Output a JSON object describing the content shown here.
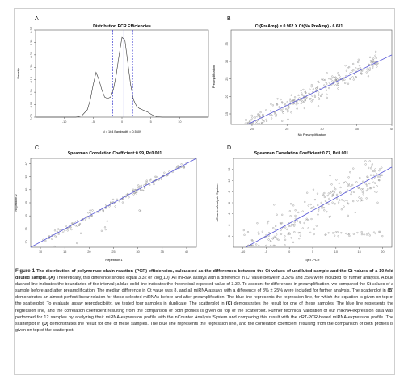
{
  "chart_data": [
    {
      "panel": "A",
      "type": "line",
      "title": "Distribution PCR Efficiencies",
      "xlabel": "N = 164   Bandwidth = 0.5609",
      "ylabel": "Density",
      "xlim": [
        -15,
        15
      ],
      "ylim": [
        0,
        0.35
      ],
      "x_ticks": [
        -10,
        -5,
        0,
        5,
        10
      ],
      "y_ticks": [
        0.0,
        0.05,
        0.1,
        0.15,
        0.2,
        0.25,
        0.3,
        0.35
      ],
      "x": [
        -15,
        -8,
        -7,
        -6,
        -5.5,
        -5,
        -4.5,
        -4,
        -3.5,
        -3,
        -2.5,
        -2,
        -1.5,
        -1,
        -0.5,
        0,
        0.5,
        1,
        1.5,
        2,
        2.5,
        3,
        3.5,
        4,
        4.5,
        5,
        5.5,
        6,
        7,
        8,
        15
      ],
      "y": [
        0,
        0,
        0.005,
        0.03,
        0.07,
        0.13,
        0.18,
        0.15,
        0.11,
        0.08,
        0.075,
        0.08,
        0.11,
        0.17,
        0.25,
        0.32,
        0.31,
        0.22,
        0.13,
        0.07,
        0.045,
        0.035,
        0.03,
        0.025,
        0.02,
        0.012,
        0.006,
        0.002,
        0,
        0,
        0
      ],
      "dashed_lines_x": [
        -1.6,
        1.85
      ],
      "solid_line_x": 0.32
    },
    {
      "panel": "B",
      "type": "scatter",
      "title": "Ct(PreAmp) = 0.962 X Ct(No PreAmp) - 6.611",
      "xlabel": "No Preamplification",
      "ylabel": "Preamplification",
      "xlim": [
        17,
        40
      ],
      "ylim": [
        12,
        39
      ],
      "x_ticks": [
        20,
        25,
        30,
        35,
        40
      ],
      "y_ticks": [
        15,
        20,
        25,
        30,
        35
      ],
      "regression": {
        "slope": 0.962,
        "intercept": -6.611
      },
      "n_points": 250,
      "noise_sd": 1.5
    },
    {
      "panel": "C",
      "type": "scatter",
      "title": "Spearman Correlation Coefficient:0.99, P<0.001",
      "xlabel": "Repetition 1",
      "ylabel": "Repetition 2",
      "xlim": [
        8,
        42
      ],
      "ylim": [
        8,
        42
      ],
      "x_ticks": [
        10,
        15,
        20,
        25,
        30,
        35,
        40
      ],
      "y_ticks": [
        10,
        15,
        20,
        25,
        30,
        35,
        40
      ],
      "regression": {
        "slope": 1.0,
        "intercept": 0.0
      },
      "n_points": 160,
      "noise_sd": 0.8
    },
    {
      "panel": "D",
      "type": "scatter",
      "title": "Spearman Correlation Coefficient:0.77, P<0.001",
      "xlabel": "qRT-PCR",
      "ylabel": "nCounter Analysis System",
      "xlim": [
        -12,
        22
      ],
      "ylim": [
        -2,
        14
      ],
      "x_ticks": [
        -10,
        -5,
        0,
        5,
        10,
        15,
        20
      ],
      "y_ticks": [
        0,
        2,
        4,
        6,
        8,
        10,
        12
      ],
      "regression": {
        "slope": 0.46,
        "intercept": 2.3
      },
      "n_points": 260,
      "noise_sd": 1.9
    }
  ],
  "panels": {
    "a_letter": "A",
    "b_letter": "B",
    "c_letter": "C",
    "d_letter": "D"
  },
  "caption": {
    "label": "Figure 1",
    "title": "The distribution of polymerase chain reaction (PCR) efficiencies, calculated as the differences between the Ct values of undiluted sample and the Ct values of a 10-fold diluted sample.",
    "a_ref": "(A)",
    "part1": "Theoretically, this difference should equal 3.32 or 2log(10). All miRNA assays with a difference in Ct value between 3.32% and 25% were included for further analysis. A blue dashed line indicates the boundaries of the interval; a blue solid line indicates the theoretical expected value of 3.32. To account for differences in preamplification, we compared the Ct values of a sample before and after preamplification. The median difference in Ct value was 8, and all miRNA assays with a difference of 8% ± 25% were included for further analysis. The scatterplot in",
    "b_ref": "(B)",
    "part2": "demonstrates an almost perfect linear relation for those selected miRNAs before and after preamplification. The blue line represents the regression line, for which the equation is given on top of the scatterplot. To evaluate assay reproducibility, we tested four samples in duplicate. The scatterplot in",
    "c_ref": "(C)",
    "part3": "demonstrates the result for one of these samples. The blue line represents the regression line, and the correlation coefficient resulting from the comparison of both profiles is given on top of the scatterplot. Further technical validation of our miRNA-expression data was performed for 12 samples by analyzing their miRNA-expression profile with the nCounter Analysis System and comparing this result with the qRT-PCR-based miRNA-expression profile. The scatterplot in",
    "d_ref": "(D)",
    "part4": "demonstrates the result for one of these samples. The blue line represents the regression line, and the correlation coefficient resulting from the comparison of both profiles is given on top of the scatterplot."
  }
}
